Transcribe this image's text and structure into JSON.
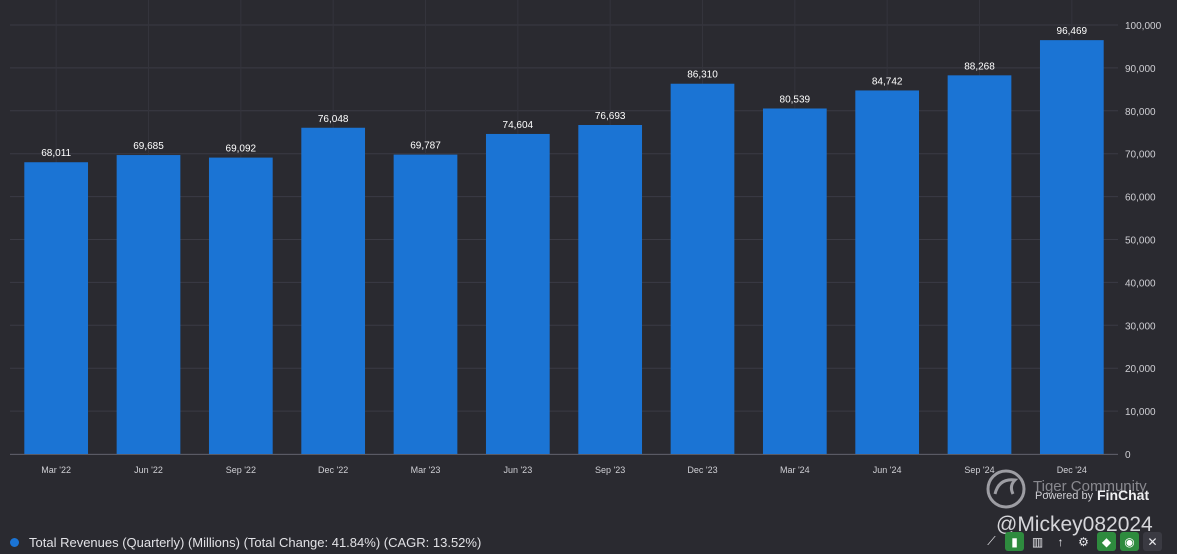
{
  "chart_data": {
    "type": "bar",
    "categories": [
      "Mar '22",
      "Jun '22",
      "Sep '22",
      "Dec '22",
      "Mar '23",
      "Jun '23",
      "Sep '23",
      "Dec '23",
      "Mar '24",
      "Jun '24",
      "Sep '24",
      "Dec '24"
    ],
    "values": [
      68011,
      69685,
      69092,
      76048,
      69787,
      74604,
      76693,
      86310,
      80539,
      84742,
      88268,
      96469
    ],
    "value_labels": [
      "68,011",
      "69,685",
      "69,092",
      "76,048",
      "69,787",
      "74,604",
      "76,693",
      "86,310",
      "80,539",
      "84,742",
      "88,268",
      "96,469"
    ],
    "ylim": [
      0,
      100000
    ],
    "yticks": [
      0,
      10000,
      20000,
      30000,
      40000,
      50000,
      60000,
      70000,
      80000,
      90000,
      100000
    ],
    "ytick_labels": [
      "0",
      "10,000",
      "20,000",
      "30,000",
      "40,000",
      "50,000",
      "60,000",
      "70,000",
      "80,000",
      "90,000",
      "100,000"
    ],
    "y_axis_side": "right",
    "grid": true,
    "bar_color": "#1b74d4",
    "series": [
      {
        "name": "Total Revenues (Quarterly) (Millions) (Total Change: 41.84%) (CAGR: 13.52%)"
      }
    ]
  },
  "legend": {
    "label": "Total Revenues (Quarterly) (Millions) (Total Change: 41.84%) (CAGR: 13.52%)",
    "color": "#1b74d4"
  },
  "watermark": {
    "community": "Tiger Community",
    "powered_by": "Powered by",
    "brand": "FinChat",
    "handle": "@Mickey082024"
  },
  "toolbar": {
    "icons": [
      "line-chart-icon",
      "bar-chart-icon",
      "bar-chart-alt-icon",
      "sort-icon",
      "settings-icon",
      "tag-icon",
      "eye-icon",
      "close-icon"
    ]
  }
}
